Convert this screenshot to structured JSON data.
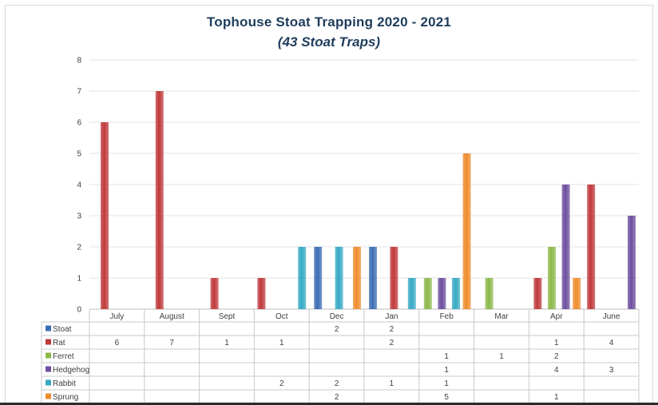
{
  "chart_data": {
    "type": "bar",
    "title": "Tophouse Stoat Trapping 2020 - 2021",
    "subtitle": "(43 Stoat Traps)",
    "xlabel": "",
    "ylabel": "",
    "ylim": [
      0,
      8
    ],
    "yticks": [
      "0",
      "1",
      "2",
      "3",
      "4",
      "5",
      "6",
      "7",
      "8"
    ],
    "grid": true,
    "legend": "data-table-below",
    "categories": [
      "July",
      "August",
      "Sept",
      "Oct",
      "Dec",
      "Jan",
      "Feb",
      "Mar",
      "Apr",
      "June"
    ],
    "series": [
      {
        "name": "Stoat",
        "color": "#3b6db4",
        "values": [
          null,
          null,
          null,
          null,
          2,
          2,
          null,
          null,
          null,
          null
        ]
      },
      {
        "name": "Rat",
        "color": "#c0393b",
        "values": [
          6,
          7,
          1,
          1,
          null,
          2,
          null,
          null,
          1,
          4
        ]
      },
      {
        "name": "Ferret",
        "color": "#8cb84a",
        "values": [
          null,
          null,
          null,
          null,
          null,
          null,
          1,
          1,
          2,
          null
        ]
      },
      {
        "name": "Hedgehog",
        "color": "#6e4e9e",
        "values": [
          null,
          null,
          null,
          null,
          null,
          null,
          1,
          null,
          4,
          3
        ]
      },
      {
        "name": "Rabbit",
        "color": "#35a9c4",
        "values": [
          null,
          null,
          null,
          2,
          2,
          1,
          1,
          null,
          null,
          null
        ]
      },
      {
        "name": "Sprung",
        "color": "#ef8c2c",
        "values": [
          null,
          null,
          null,
          null,
          2,
          null,
          5,
          null,
          1,
          null
        ]
      }
    ]
  }
}
